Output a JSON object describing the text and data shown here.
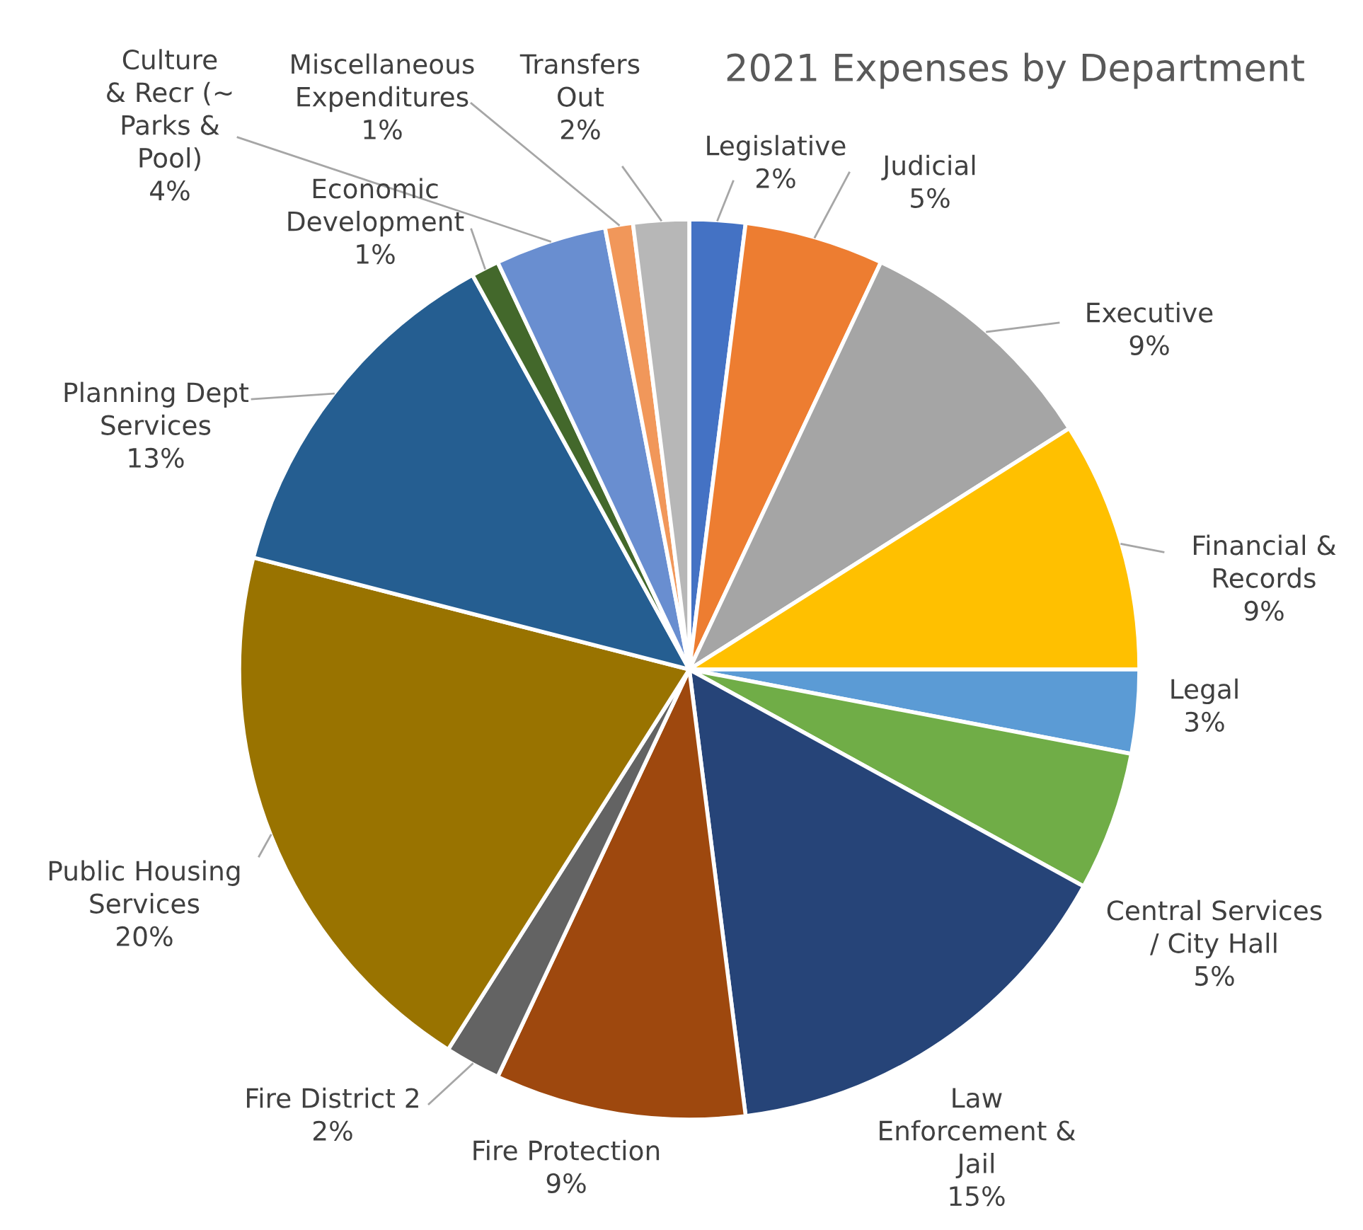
{
  "chart_data": {
    "type": "pie",
    "title": "2021 Expenses by Department",
    "categories": [
      "Legislative",
      "Judicial",
      "Executive",
      "Financial &\nRecords",
      "Legal",
      "Central Services\n/ City Hall",
      "Law\nEnforcement &\nJail",
      "Fire Protection",
      "Fire District 2",
      "Public Housing\nServices",
      "Planning Dept\nServices",
      "Economic\nDevelopment",
      "Culture\n& Recr (~\nParks &\nPool)",
      "Miscellaneous\nExpenditures",
      "Transfers\nOut"
    ],
    "values": [
      2,
      5,
      9,
      9,
      3,
      5,
      15,
      9,
      2,
      20,
      13,
      1,
      4,
      1,
      2
    ],
    "value_labels": [
      "2%",
      "5%",
      "9%",
      "9%",
      "3%",
      "5%",
      "15%",
      "9%",
      "2%",
      "20%",
      "13%",
      "1%",
      "4%",
      "1%",
      "2%"
    ],
    "colors": [
      "#4472c4",
      "#ed7d31",
      "#a5a5a5",
      "#ffc000",
      "#5b9bd5",
      "#70ad47",
      "#264478",
      "#9e480e",
      "#636363",
      "#997300",
      "#255e91",
      "#43682b",
      "#698ed0",
      "#f1975a",
      "#b7b7b7"
    ],
    "legend": false
  }
}
